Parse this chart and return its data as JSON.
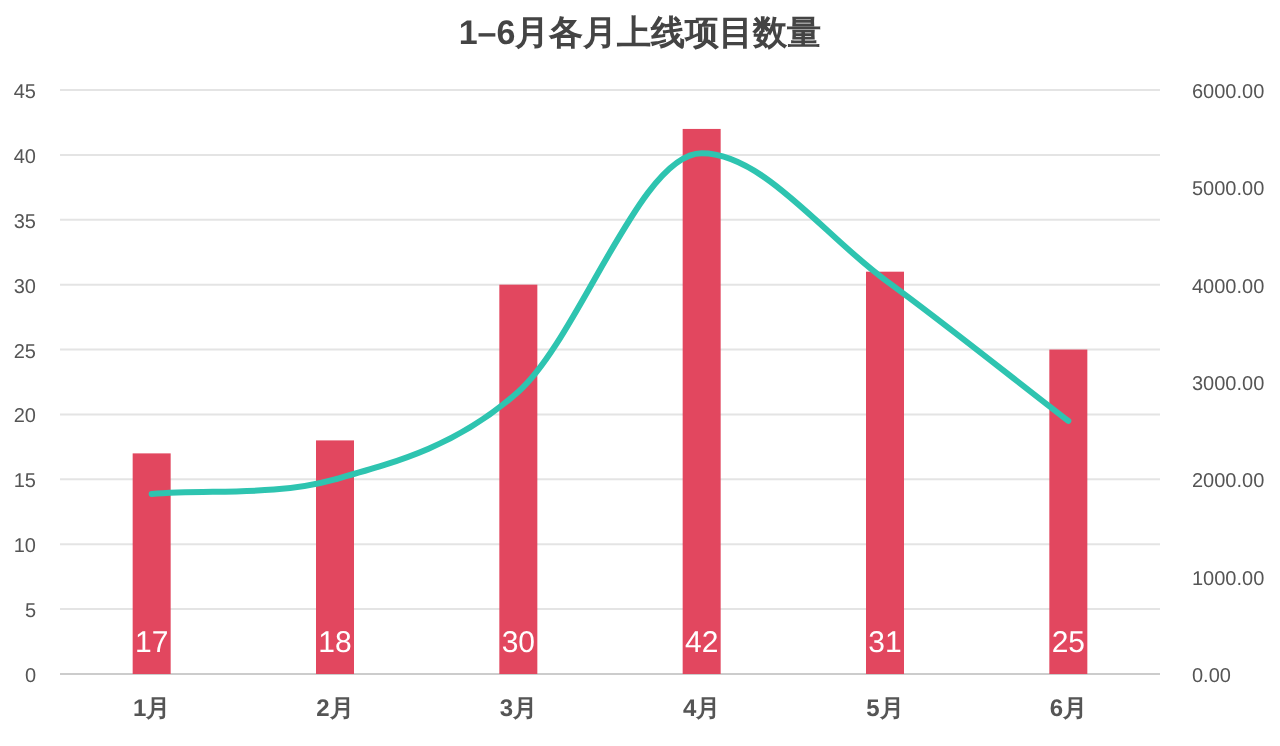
{
  "chart_data": {
    "type": "bar",
    "title": "1–6月各月上线项目数量",
    "categories": [
      "1月",
      "2月",
      "3月",
      "4月",
      "5月",
      "6月"
    ],
    "series": [
      {
        "color": "#e2475f",
        "values": [
          17,
          18,
          30,
          42,
          31,
          25
        ],
        "data_labels": true
      },
      {
        "type": "line",
        "axis": "y2",
        "color": "#2ec4b0",
        "values": [
          1850,
          2000,
          2900,
          5350,
          4050,
          2600
        ],
        "marker": "none",
        "line_style": "solid"
      }
    ],
    "ylim": [
      0,
      45
    ],
    "yticks": [
      0,
      5,
      10,
      15,
      20,
      25,
      30,
      35,
      40,
      45
    ],
    "y2lim": [
      0,
      6000
    ],
    "y2ticks": [
      {
        "value": 0,
        "label": "0.00"
      },
      {
        "value": 1000,
        "label": "1000.00"
      },
      {
        "value": 2000,
        "label": "2000.00"
      },
      {
        "value": 3000,
        "label": "3000.00"
      },
      {
        "value": 4000,
        "label": "4000.00"
      },
      {
        "value": 5000,
        "label": "5000.00"
      },
      {
        "value": 6000,
        "label": "6000.00"
      }
    ],
    "grid": "y"
  }
}
